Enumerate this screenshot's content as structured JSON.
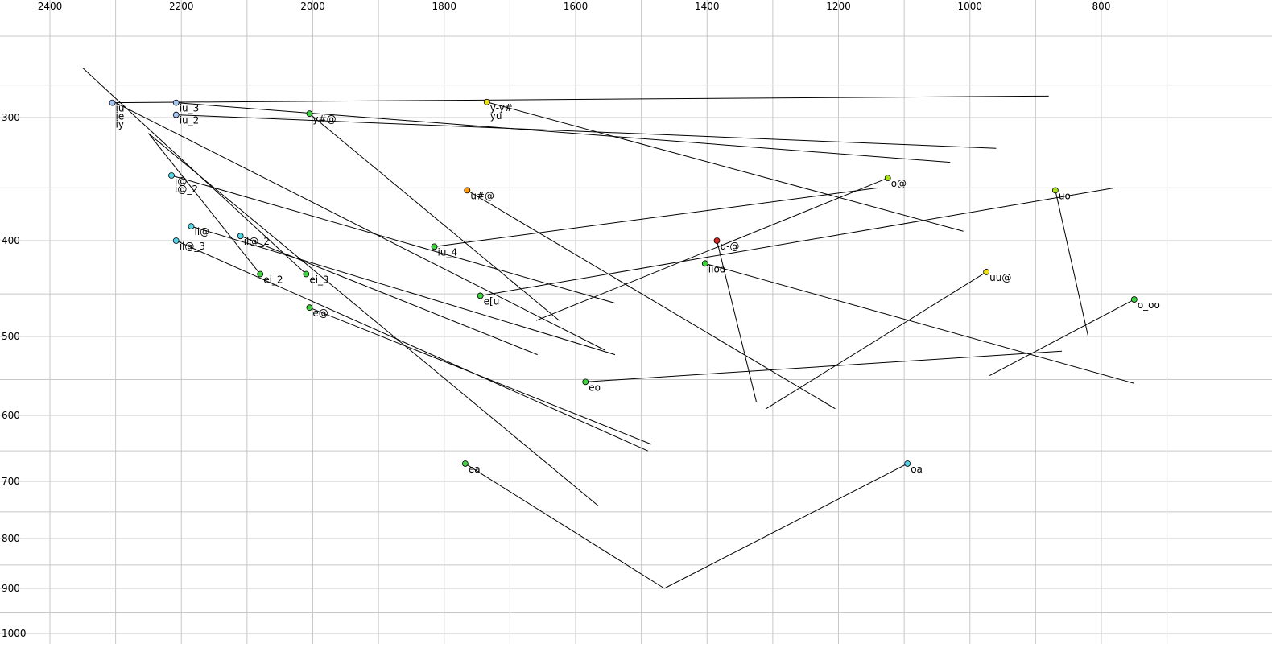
{
  "chart_data": {
    "type": "scatter",
    "title": "",
    "xlabel": "",
    "ylabel": "",
    "x_axis": {
      "reversed": true,
      "ticks": [
        2400,
        2200,
        2000,
        1800,
        1600,
        1400,
        1200,
        1000,
        800
      ]
    },
    "y_axis": {
      "reversed": true,
      "ticks": [
        300,
        400,
        500,
        600,
        700,
        800,
        900,
        1000
      ]
    },
    "grid": true,
    "colors": {
      "blue": "#a6c4f2",
      "cyan": "#55d6e8",
      "green": "#3dd43d",
      "yellow": "#f0e01a",
      "yellowgreen": "#a8e21a",
      "orange": "#ff9a14",
      "red": "#d62020"
    },
    "points": [
      {
        "label": "iu\nie\niy",
        "x": 2305,
        "y": 275,
        "color": "blue",
        "end": [
          880,
          265
        ]
      },
      {
        "label": "iu_3",
        "x": 2208,
        "y": 275,
        "color": "blue",
        "end": [
          1030,
          330
        ]
      },
      {
        "label": "iu_2",
        "x": 2208,
        "y": 295,
        "color": "blue",
        "end": [
          960,
          320
        ]
      },
      {
        "label": "y-y#\nyu",
        "x": 1735,
        "y": 274,
        "color": "yellow",
        "end": [
          1010,
          390
        ]
      },
      {
        "label": "y#@",
        "x": 2005,
        "y": 293,
        "color": "green",
        "end": [
          1625,
          480
        ]
      },
      {
        "label": "i@\ni@_2",
        "x": 2215,
        "y": 340,
        "color": "cyan",
        "end": [
          1540,
          460
        ]
      },
      {
        "label": "u#@",
        "x": 1765,
        "y": 352,
        "color": "orange",
        "end": [
          1205,
          590
        ]
      },
      {
        "label": "o@",
        "x": 1125,
        "y": 342,
        "color": "yellowgreen",
        "end": [
          1660,
          480
        ]
      },
      {
        "label": "uo",
        "x": 870,
        "y": 352,
        "color": "yellowgreen",
        "end": [
          820,
          500
        ]
      },
      {
        "label": "il@",
        "x": 2185,
        "y": 385,
        "color": "cyan",
        "end": [
          1540,
          520
        ]
      },
      {
        "label": "il@_2",
        "x": 2110,
        "y": 395,
        "color": "cyan",
        "end": [
          1658,
          520
        ]
      },
      {
        "label": "il@_3",
        "x": 2208,
        "y": 400,
        "color": "cyan",
        "end": [
          1490,
          650
        ]
      },
      {
        "label": "iu_4",
        "x": 1815,
        "y": 405,
        "color": "green",
        "end": [
          1140,
          350
        ]
      },
      {
        "label": "u-@",
        "x": 1385,
        "y": 400,
        "color": "red",
        "end": [
          1325,
          580
        ]
      },
      {
        "label": "iioo",
        "x": 1403,
        "y": 420,
        "color": "green",
        "end": [
          750,
          555
        ]
      },
      {
        "label": "ei_2",
        "x": 2080,
        "y": 430,
        "color": "green",
        "end": [
          2250,
          310
        ]
      },
      {
        "label": "ei_3",
        "x": 2010,
        "y": 430,
        "color": "green",
        "end": [
          2350,
          230
        ]
      },
      {
        "label": "uu@",
        "x": 975,
        "y": 428,
        "color": "yellow",
        "end": [
          1310,
          590
        ]
      },
      {
        "label": "e[u",
        "x": 1745,
        "y": 452,
        "color": "green",
        "end": [
          780,
          350
        ]
      },
      {
        "label": "o_oo",
        "x": 750,
        "y": 456,
        "color": "green",
        "end": [
          970,
          545
        ]
      },
      {
        "label": "e@",
        "x": 2005,
        "y": 465,
        "color": "green",
        "end": [
          1485,
          640
        ]
      },
      {
        "label": "eo",
        "x": 1585,
        "y": 553,
        "color": "green",
        "end": [
          860,
          516
        ]
      },
      {
        "label": "ea",
        "x": 1768,
        "y": 670,
        "color": "green",
        "end": [
          1465,
          900
        ]
      },
      {
        "label": "oa",
        "x": 1095,
        "y": 670,
        "color": "cyan",
        "end": [
          1465,
          900
        ]
      }
    ],
    "extra_lines": [
      {
        "from": [
          2300,
          275
        ],
        "to": [
          1555,
          515
        ]
      },
      {
        "from": [
          2250,
          310
        ],
        "to": [
          1565,
          740
        ]
      }
    ]
  }
}
